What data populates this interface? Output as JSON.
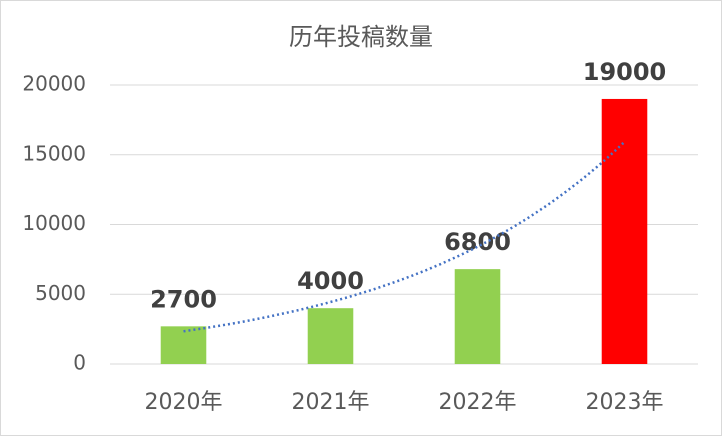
{
  "chart_data": {
    "type": "bar",
    "title": "历年投稿数量",
    "categories": [
      "2020年",
      "2021年",
      "2022年",
      "2023年"
    ],
    "values": [
      2700,
      4000,
      6800,
      19000
    ],
    "colors": [
      "#92d050",
      "#92d050",
      "#92d050",
      "#ff0000"
    ],
    "ylim": [
      0,
      20000
    ],
    "yticks": [
      0,
      5000,
      10000,
      15000,
      20000
    ],
    "grid": true,
    "trendline": {
      "type": "exponential",
      "color": "#4472c4"
    }
  }
}
